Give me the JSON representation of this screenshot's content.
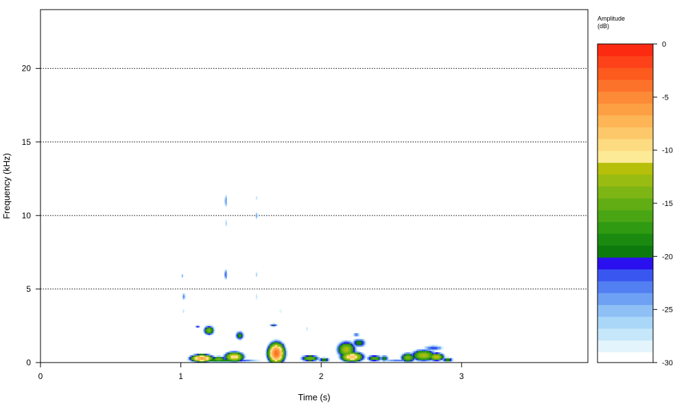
{
  "chart_data": {
    "type": "heatmap",
    "title": "",
    "xlabel": "Time (s)",
    "ylabel": "Frequency (kHz)",
    "xlim": [
      0,
      3.9
    ],
    "ylim": [
      0,
      24
    ],
    "x_ticks": [
      0,
      1,
      2,
      3
    ],
    "y_ticks": [
      0,
      5,
      10,
      15,
      20
    ],
    "grid": "horizontal dotted",
    "colorbar": {
      "title_line1": "Amplitude",
      "title_line2": "(dB)",
      "range": [
        -30,
        0
      ],
      "ticks": [
        0,
        -5,
        -10,
        -15,
        -20,
        -25,
        -30
      ],
      "colors": [
        "#e4f4fc",
        "#c6e6fa",
        "#aad6f8",
        "#8ec0f6",
        "#6ea0f4",
        "#5280f2",
        "#3a56f0",
        "#2a10ee",
        "#0d7a0d",
        "#1a8a10",
        "#2f9a12",
        "#4aa514",
        "#62ad14",
        "#7db614",
        "#99bc12",
        "#b6bf0a",
        "#fdea96",
        "#fddb80",
        "#fdc86a",
        "#fdb556",
        "#fda044",
        "#fd8a36",
        "#fd722a",
        "#fd5a1e",
        "#fd421a",
        "#fd2a12"
      ]
    },
    "blobs": [
      {
        "t": 1.15,
        "f": 0.3,
        "rt": 0.07,
        "rf": 0.22,
        "peak": -6
      },
      {
        "t": 1.27,
        "f": 0.25,
        "rt": 0.05,
        "rf": 0.18,
        "peak": -14
      },
      {
        "t": 1.38,
        "f": 0.4,
        "rt": 0.06,
        "rf": 0.3,
        "peak": -9
      },
      {
        "t": 1.3,
        "f": 0.15,
        "rt": 0.25,
        "rf": 0.12,
        "peak": -18
      },
      {
        "t": 1.68,
        "f": 0.65,
        "rt": 0.05,
        "rf": 0.6,
        "peak": -4
      },
      {
        "t": 1.71,
        "f": 1.15,
        "rt": 0.03,
        "rf": 0.25,
        "peak": -16
      },
      {
        "t": 1.92,
        "f": 0.3,
        "rt": 0.06,
        "rf": 0.2,
        "peak": -14
      },
      {
        "t": 2.02,
        "f": 0.2,
        "rt": 0.04,
        "rf": 0.15,
        "peak": -17
      },
      {
        "t": 2.18,
        "f": 0.9,
        "rt": 0.06,
        "rf": 0.5,
        "peak": -12
      },
      {
        "t": 2.22,
        "f": 0.4,
        "rt": 0.07,
        "rf": 0.3,
        "peak": -8
      },
      {
        "t": 2.27,
        "f": 1.35,
        "rt": 0.05,
        "rf": 0.3,
        "peak": -18
      },
      {
        "t": 2.38,
        "f": 0.3,
        "rt": 0.05,
        "rf": 0.2,
        "peak": -15
      },
      {
        "t": 2.45,
        "f": 0.3,
        "rt": 0.03,
        "rf": 0.2,
        "peak": -18
      },
      {
        "t": 2.62,
        "f": 0.35,
        "rt": 0.05,
        "rf": 0.3,
        "peak": -14
      },
      {
        "t": 2.73,
        "f": 0.5,
        "rt": 0.08,
        "rf": 0.35,
        "peak": -12
      },
      {
        "t": 2.82,
        "f": 0.4,
        "rt": 0.05,
        "rf": 0.25,
        "peak": -11
      },
      {
        "t": 2.9,
        "f": 0.2,
        "rt": 0.04,
        "rf": 0.15,
        "peak": -17
      },
      {
        "t": 1.2,
        "f": 2.2,
        "rt": 0.035,
        "rf": 0.3,
        "peak": -14
      },
      {
        "t": 1.12,
        "f": 2.45,
        "rt": 0.02,
        "rf": 0.1,
        "peak": -21
      },
      {
        "t": 1.42,
        "f": 1.85,
        "rt": 0.03,
        "rf": 0.3,
        "peak": -17
      },
      {
        "t": 1.66,
        "f": 2.55,
        "rt": 0.03,
        "rf": 0.12,
        "peak": -20
      },
      {
        "t": 2.25,
        "f": 1.9,
        "rt": 0.03,
        "rf": 0.15,
        "peak": -22
      },
      {
        "t": 1.32,
        "f": 6.0,
        "rt": 0.012,
        "rf": 0.4,
        "peak": -21
      },
      {
        "t": 1.32,
        "f": 11.0,
        "rt": 0.01,
        "rf": 0.6,
        "peak": -23
      },
      {
        "t": 1.32,
        "f": 9.5,
        "rt": 0.008,
        "rf": 0.4,
        "peak": -25
      },
      {
        "t": 1.54,
        "f": 10.0,
        "rt": 0.01,
        "rf": 0.3,
        "peak": -23
      },
      {
        "t": 1.54,
        "f": 11.2,
        "rt": 0.008,
        "rf": 0.3,
        "peak": -26
      },
      {
        "t": 1.54,
        "f": 6.0,
        "rt": 0.008,
        "rf": 0.3,
        "peak": -25
      },
      {
        "t": 1.54,
        "f": 4.5,
        "rt": 0.008,
        "rf": 0.4,
        "peak": -26
      },
      {
        "t": 1.02,
        "f": 4.5,
        "rt": 0.012,
        "rf": 0.3,
        "peak": -22
      },
      {
        "t": 1.01,
        "f": 5.9,
        "rt": 0.008,
        "rf": 0.2,
        "peak": -25
      },
      {
        "t": 1.04,
        "f": 10.7,
        "rt": 0.006,
        "rf": 0.15,
        "peak": -27
      },
      {
        "t": 1.02,
        "f": 3.5,
        "rt": 0.01,
        "rf": 0.2,
        "peak": -26
      },
      {
        "t": 1.71,
        "f": 3.5,
        "rt": 0.01,
        "rf": 0.2,
        "peak": -26
      },
      {
        "t": 1.9,
        "f": 2.3,
        "rt": 0.01,
        "rf": 0.15,
        "peak": -26
      },
      {
        "t": 2.8,
        "f": 1.0,
        "rt": 0.08,
        "rf": 0.2,
        "peak": -21
      },
      {
        "t": 2.55,
        "f": 0.15,
        "rt": 0.15,
        "rf": 0.1,
        "peak": -23
      }
    ]
  }
}
